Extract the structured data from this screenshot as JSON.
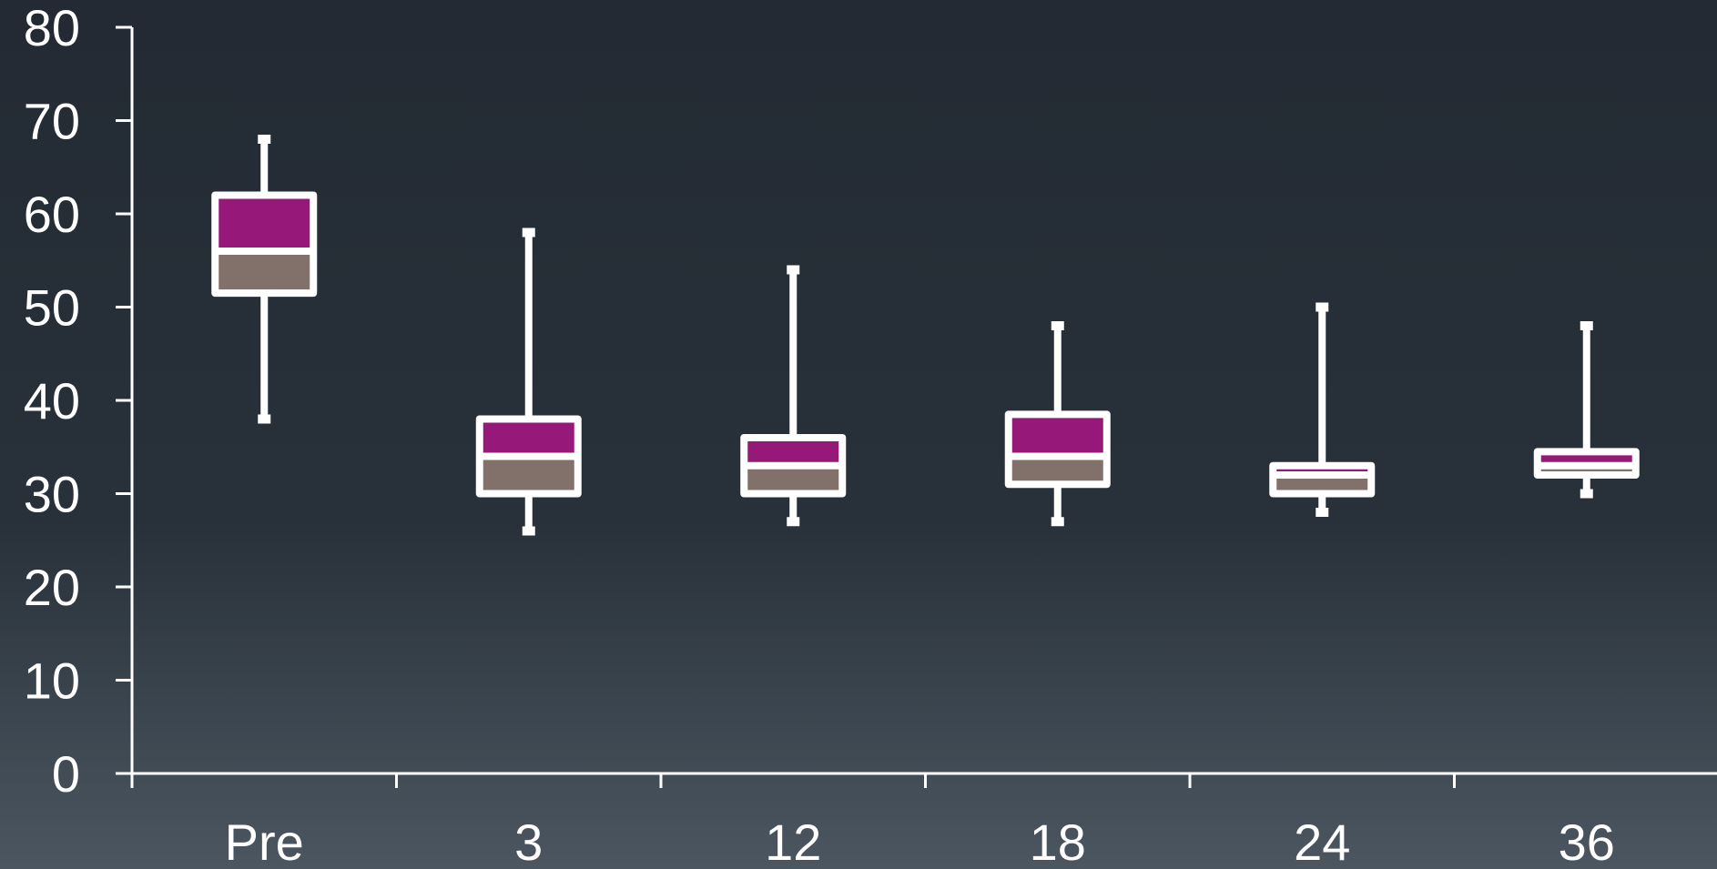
{
  "chart_data": {
    "type": "box",
    "title": "",
    "xlabel": "",
    "ylabel": "",
    "ylim": [
      0,
      80
    ],
    "yticks": [
      "0",
      "10",
      "20",
      "30",
      "40",
      "50",
      "60",
      "70",
      "80"
    ],
    "categories": [
      "Pre",
      "3",
      "12",
      "18",
      "24",
      "36"
    ],
    "boxes": [
      {
        "category": "Pre",
        "min": 38,
        "q1": 51.5,
        "median": 56,
        "q3": 62,
        "max": 68
      },
      {
        "category": "3",
        "min": 26,
        "q1": 30,
        "median": 34,
        "q3": 38,
        "max": 58
      },
      {
        "category": "12",
        "min": 27,
        "q1": 30,
        "median": 33,
        "q3": 36,
        "max": 54
      },
      {
        "category": "18",
        "min": 27,
        "q1": 31,
        "median": 34,
        "q3": 38.5,
        "max": 48
      },
      {
        "category": "24",
        "min": 28,
        "q1": 30,
        "median": 32,
        "q3": 33,
        "max": 50
      },
      {
        "category": "36",
        "min": 30,
        "q1": 32,
        "median": 33,
        "q3": 34.5,
        "max": 48
      }
    ],
    "grid": false,
    "colors": {
      "upper_box": "#961879",
      "lower_box": "#82716b",
      "outline": "#ffffff",
      "axis": "#ffffff",
      "text": "#ffffff"
    }
  }
}
